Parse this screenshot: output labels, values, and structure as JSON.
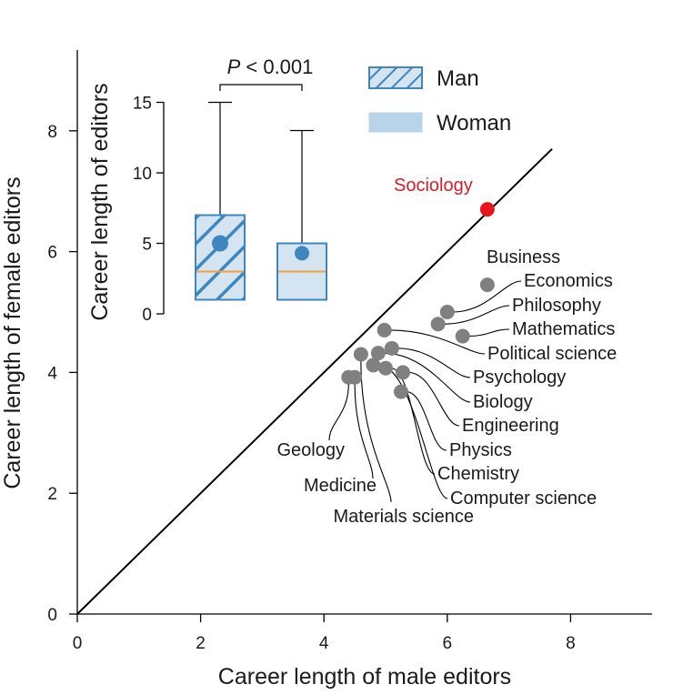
{
  "chart_data": [
    {
      "type": "scatter",
      "xlabel": "Career length of male editors",
      "ylabel": "Career length of female editors",
      "xlim": [
        0,
        9.3
      ],
      "ylim": [
        0,
        9.3
      ],
      "xticks": [
        "0",
        "2",
        "4",
        "6",
        "8"
      ],
      "yticks": [
        "0",
        "2",
        "4",
        "6",
        "8"
      ],
      "grid": false,
      "reference_line": "y = x",
      "colors": {
        "point": "#808080",
        "highlight": "#e8161b",
        "highlight_label": "#d0202a",
        "line": "#000000"
      },
      "points": [
        {
          "label": "Sociology",
          "x": 6.65,
          "y": 6.7,
          "highlight": true
        },
        {
          "label": "Business",
          "x": 6.65,
          "y": 5.45
        },
        {
          "label": "Economics",
          "x": 6.0,
          "y": 5.0
        },
        {
          "label": "Philosophy",
          "x": 5.85,
          "y": 4.8
        },
        {
          "label": "Mathematics",
          "x": 6.25,
          "y": 4.6
        },
        {
          "label": "Political science",
          "x": 4.98,
          "y": 4.7
        },
        {
          "label": "Psychology",
          "x": 5.1,
          "y": 4.4
        },
        {
          "label": "Biology",
          "x": 4.88,
          "y": 4.32
        },
        {
          "label": "Engineering",
          "x": 5.28,
          "y": 4.0
        },
        {
          "label": "Physics",
          "x": 5.25,
          "y": 3.68
        },
        {
          "label": "Chemistry",
          "x": 5.0,
          "y": 4.07
        },
        {
          "label": "Computer science",
          "x": 4.8,
          "y": 4.12
        },
        {
          "label": "Materials science",
          "x": 4.6,
          "y": 4.3
        },
        {
          "label": "Medicine",
          "x": 4.5,
          "y": 3.92
        },
        {
          "label": "Geology",
          "x": 4.4,
          "y": 3.92
        }
      ]
    },
    {
      "type": "box",
      "ylabel": "Career length of editors",
      "yticks": [
        "0",
        "5",
        "10",
        "15"
      ],
      "ylim": [
        0,
        17
      ],
      "annotation": {
        "prefix": "P",
        "text": " < 0.001"
      },
      "legend": [
        {
          "name": "Man",
          "pattern": "hatched"
        },
        {
          "name": "Woman",
          "pattern": "solid"
        }
      ],
      "colors": {
        "box_edge": "#3f86bf",
        "box_fill": "#d4e4f1",
        "hatch": "#3f86bf",
        "median": "#f0a040",
        "mean": "#3f86bf"
      },
      "series": [
        {
          "name": "Man",
          "whisker_low": 1,
          "q1": 1,
          "median": 3,
          "q3": 7,
          "whisker_high": 15,
          "mean": 5
        },
        {
          "name": "Woman",
          "whisker_low": 1,
          "q1": 1,
          "median": 3,
          "q3": 5,
          "whisker_high": 13,
          "mean": 4.3
        }
      ]
    }
  ]
}
